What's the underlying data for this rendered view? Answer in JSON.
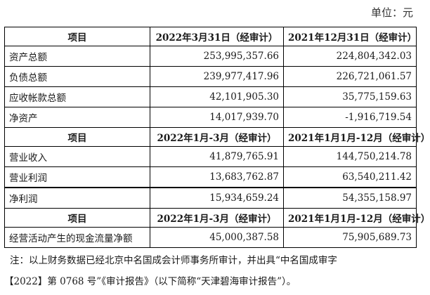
{
  "unit_label": "单位：元",
  "table": {
    "sections": [
      {
        "header": [
          "项目",
          "2022年3月31日（经审计）",
          "2021年12月31日（经审计）"
        ],
        "rows": [
          [
            "资产总额",
            "253,995,357.66",
            "224,804,342.03"
          ],
          [
            "负债总额",
            "239,977,417.96",
            "226,721,061.57"
          ],
          [
            "应收帐款总额",
            "42,101,905.30",
            "35,775,159.63"
          ],
          [
            "净资产",
            "14,017,939.70",
            "-1,916,719.54"
          ]
        ]
      },
      {
        "header": [
          "项目",
          "2022年1月-3月（经审计）",
          "2021年1月1月-12月（经审计）"
        ],
        "rows": [
          [
            "营业收入",
            "41,879,765.91",
            "144,750,214.78"
          ],
          [
            "营业利润",
            "13,683,762.87",
            "63,540,211.42"
          ],
          [
            "净利润",
            "15,934,659.24",
            "54,355,158.97"
          ]
        ]
      },
      {
        "header": [
          "项目",
          "2022年1月-3月（经审计）",
          "2021年1月1月-12月（经审计）"
        ],
        "rows": [
          [
            "经营活动产生的现金流量净额",
            "45,000,387.58",
            "75,905,689.73"
          ]
        ]
      }
    ]
  },
  "note": {
    "line1": "注：以上财务数据已经北京中名国成会计师事务所审计，并出具“中名国成审字",
    "line2": "【2022】第 0768 号”《审计报告》（以下简称“天津碧海审计报告”）。"
  }
}
